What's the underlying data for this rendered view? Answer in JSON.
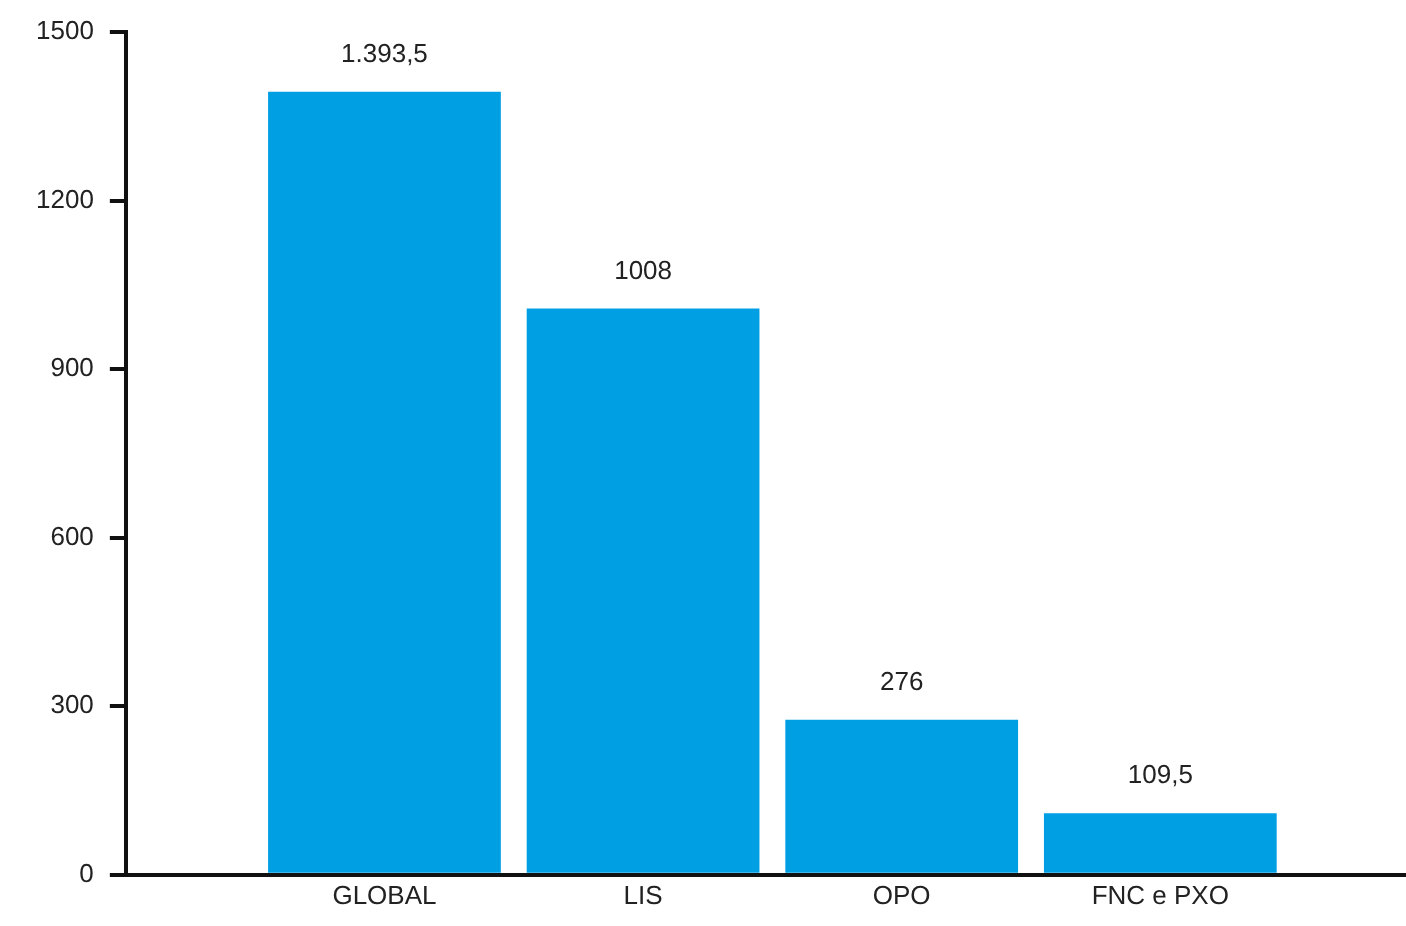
{
  "chart_data": {
    "type": "bar",
    "categories": [
      "GLOBAL",
      "LIS",
      "OPO",
      "FNC e PXO"
    ],
    "values": [
      1393.5,
      1008,
      276,
      109.5
    ],
    "value_labels": [
      "1.393,5",
      "1008",
      "276",
      "109,5"
    ],
    "color": "#009fe3",
    "ylim": [
      0,
      1500
    ],
    "yticks": [
      0,
      300,
      600,
      900,
      1200,
      1500
    ],
    "grid": false,
    "legend": false
  }
}
